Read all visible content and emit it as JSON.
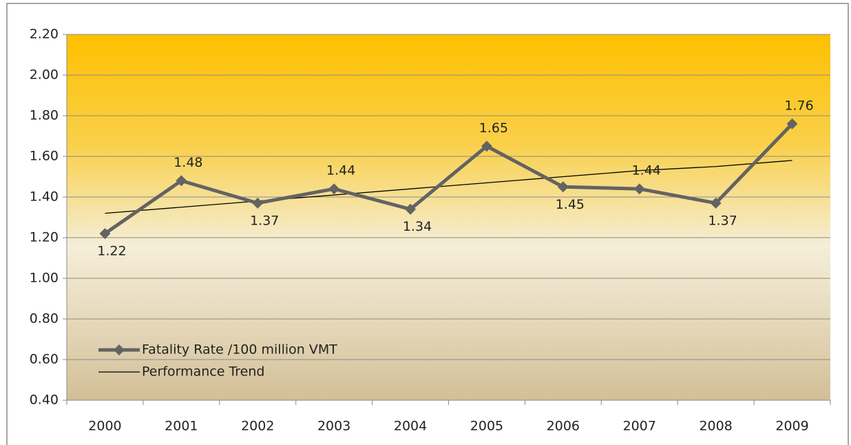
{
  "chart_data": {
    "type": "line",
    "categories": [
      "2000",
      "2001",
      "2002",
      "2003",
      "2004",
      "2005",
      "2006",
      "2007",
      "2008",
      "2009"
    ],
    "series": [
      {
        "name": "Fatality Rate /100 million VMT",
        "color": "#636363",
        "values": [
          1.22,
          1.48,
          1.37,
          1.44,
          1.34,
          1.65,
          1.45,
          1.44,
          1.37,
          1.76
        ],
        "markers": "diamond",
        "data_labels": true
      },
      {
        "name": "Performance Trend",
        "color": "#000000",
        "values": [
          1.32,
          1.35,
          1.38,
          1.41,
          1.44,
          1.47,
          1.5,
          1.53,
          1.55,
          1.58
        ]
      }
    ],
    "ylim": [
      0.4,
      2.2
    ],
    "yticks": [
      {
        "value": 0.4,
        "label": "0.40"
      },
      {
        "value": 0.6,
        "label": "0.60"
      },
      {
        "value": 0.8,
        "label": "0.80"
      },
      {
        "value": 1.0,
        "label": "1.00"
      },
      {
        "value": 1.2,
        "label": "1.20"
      },
      {
        "value": 1.4,
        "label": "1.40"
      },
      {
        "value": 1.6,
        "label": "1.60"
      },
      {
        "value": 1.8,
        "label": "1.80"
      },
      {
        "value": 2.0,
        "label": "2.00"
      },
      {
        "value": 2.2,
        "label": "2.20"
      }
    ],
    "grid": true,
    "legend": "lower left"
  }
}
